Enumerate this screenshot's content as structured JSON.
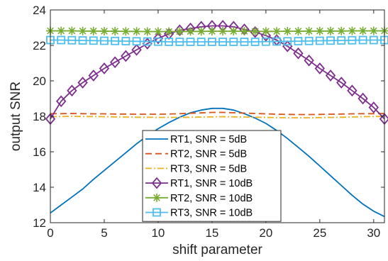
{
  "chart_data": {
    "type": "line",
    "title": "",
    "xlabel": "shift parameter",
    "ylabel": "output SNR",
    "xlim": [
      0,
      31
    ],
    "ylim": [
      12,
      24
    ],
    "xticks": [
      0,
      5,
      10,
      15,
      20,
      25,
      30
    ],
    "yticks": [
      12,
      14,
      16,
      18,
      20,
      22,
      24
    ],
    "grid": false,
    "legend_position": "bottom-center",
    "x": [
      0,
      1,
      2,
      3,
      4,
      5,
      6,
      7,
      8,
      9,
      10,
      11,
      12,
      13,
      14,
      15,
      16,
      17,
      18,
      19,
      20,
      21,
      22,
      23,
      24,
      25,
      26,
      27,
      28,
      29,
      30,
      31
    ],
    "series": [
      {
        "name": "RT1, SNR = 5dB",
        "color": "#0072BD",
        "dash": "solid",
        "marker": "none",
        "values": [
          12.55,
          13.0,
          13.45,
          13.9,
          14.45,
          14.95,
          15.45,
          15.95,
          16.45,
          16.9,
          17.3,
          17.65,
          17.95,
          18.2,
          18.35,
          18.45,
          18.45,
          18.35,
          18.15,
          17.9,
          17.6,
          17.2,
          16.75,
          16.25,
          15.75,
          15.2,
          14.65,
          14.1,
          13.55,
          13.05,
          12.65,
          12.35
        ]
      },
      {
        "name": "RT2, SNR = 5dB",
        "color": "#D95319",
        "dash": "dashed",
        "marker": "none",
        "values": [
          18.15,
          18.15,
          18.16,
          18.15,
          18.14,
          18.14,
          18.13,
          18.13,
          18.12,
          18.12,
          18.12,
          18.13,
          18.15,
          18.17,
          18.19,
          18.22,
          18.22,
          18.2,
          18.18,
          18.16,
          18.14,
          18.12,
          18.11,
          18.1,
          18.1,
          18.11,
          18.12,
          18.13,
          18.14,
          18.15,
          18.15,
          18.16
        ]
      },
      {
        "name": "RT3, SNR = 5dB",
        "color": "#EDB120",
        "dash": "dashdot",
        "marker": "none",
        "values": [
          17.98,
          17.99,
          18.0,
          17.99,
          17.99,
          17.98,
          17.97,
          17.96,
          17.95,
          17.95,
          17.94,
          17.94,
          17.94,
          17.95,
          17.96,
          17.97,
          17.98,
          17.97,
          17.96,
          17.95,
          17.94,
          17.93,
          17.92,
          17.92,
          17.92,
          17.93,
          17.94,
          17.95,
          17.96,
          17.98,
          17.99,
          18.0
        ]
      },
      {
        "name": "RT1, SNR = 10dB",
        "color": "#7E2F8E",
        "dash": "solid",
        "marker": "diamond",
        "values": [
          17.85,
          18.85,
          19.45,
          19.9,
          20.3,
          20.7,
          21.05,
          21.4,
          21.75,
          22.1,
          22.4,
          22.65,
          22.85,
          22.95,
          23.05,
          23.1,
          23.1,
          23.05,
          22.9,
          22.75,
          22.55,
          22.3,
          21.95,
          21.55,
          21.15,
          20.7,
          20.3,
          19.9,
          19.45,
          19.0,
          18.5,
          17.85
        ]
      },
      {
        "name": "RT2, SNR = 10dB",
        "color": "#77AC30",
        "dash": "solid",
        "marker": "asterisk",
        "values": [
          22.82,
          22.82,
          22.82,
          22.81,
          22.81,
          22.8,
          22.8,
          22.79,
          22.79,
          22.78,
          22.78,
          22.78,
          22.78,
          22.79,
          22.79,
          22.8,
          22.8,
          22.8,
          22.8,
          22.79,
          22.79,
          22.79,
          22.8,
          22.8,
          22.81,
          22.81,
          22.81,
          22.81,
          22.82,
          22.82,
          22.82,
          22.82
        ]
      },
      {
        "name": "RT3, SNR = 10dB",
        "color": "#4DBEEE",
        "dash": "solid",
        "marker": "square",
        "values": [
          22.3,
          22.3,
          22.29,
          22.28,
          22.27,
          22.26,
          22.25,
          22.24,
          22.23,
          22.22,
          22.21,
          22.2,
          22.2,
          22.2,
          22.2,
          22.2,
          22.2,
          22.2,
          22.2,
          22.2,
          22.21,
          22.22,
          22.23,
          22.24,
          22.25,
          22.26,
          22.27,
          22.28,
          22.29,
          22.3,
          22.3,
          22.3
        ]
      }
    ]
  }
}
